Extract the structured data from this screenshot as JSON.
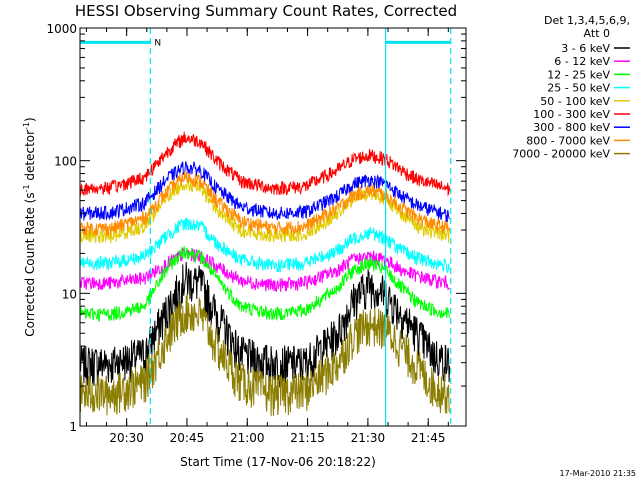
{
  "chart_data": {
    "type": "line",
    "title": "HESSI Observing Summary Count Rates, Corrected",
    "xlabel": "Start Time (17-Nov-06 20:18:22)",
    "ylabel": "Corrected Count Rate (s",
    "ylabel_sup1": "-1",
    "ylabel_mid": " detector",
    "ylabel_sup2": "-1",
    "ylabel_end": ")",
    "x_unit": "minutes from 20:18:22",
    "xlim": [
      0,
      96
    ],
    "x_ticks": [
      {
        "label": "20:30",
        "value": 11.6
      },
      {
        "label": "20:45",
        "value": 26.6
      },
      {
        "label": "21:00",
        "value": 41.6
      },
      {
        "label": "21:15",
        "value": 56.6
      },
      {
        "label": "21:30",
        "value": 71.6
      },
      {
        "label": "21:45",
        "value": 86.6
      }
    ],
    "y_scale": "log",
    "ylim": [
      1,
      1000
    ],
    "y_ticks": [
      {
        "label": "1",
        "value": 1
      },
      {
        "label": "10",
        "value": 10
      },
      {
        "label": "100",
        "value": 100
      },
      {
        "label": "1000",
        "value": 1000
      }
    ],
    "legend_header": [
      "Det 1,3,4,5,6,9,",
      "Att 0"
    ],
    "legend_position": "right",
    "annotations": {
      "marker_label": "N",
      "dashed_lines_x": [
        17.5,
        92.2
      ],
      "solid_lines_x": [
        76.0
      ],
      "bar_segments": [
        [
          0,
          17.5
        ],
        [
          76.0,
          92.2
        ]
      ],
      "bar_y": 780,
      "color": "#00e5ee"
    },
    "series": [
      {
        "name": "3 - 6 keV",
        "color": "#000000",
        "x": [
          0,
          8,
          16,
          22,
          26,
          30,
          34,
          40,
          48,
          56,
          64,
          68,
          72,
          76,
          80,
          84,
          88,
          92
        ],
        "y": [
          3.0,
          3.0,
          3.5,
          8,
          13,
          12,
          7,
          3.5,
          3.0,
          3.0,
          5,
          9,
          12,
          10,
          7,
          5,
          3.5,
          3.0
        ]
      },
      {
        "name": "6 - 12 keV",
        "color": "#ff00ff",
        "x": [
          0,
          8,
          16,
          22,
          26,
          30,
          34,
          40,
          48,
          56,
          64,
          68,
          72,
          76,
          80,
          84,
          88,
          92
        ],
        "y": [
          12,
          12,
          13,
          17,
          20,
          19,
          16,
          12.5,
          11.5,
          12,
          15,
          18,
          19,
          18,
          15,
          13.5,
          12.5,
          12
        ]
      },
      {
        "name": "12 - 25 keV",
        "color": "#00ff00",
        "x": [
          0,
          8,
          16,
          22,
          26,
          30,
          34,
          40,
          48,
          56,
          64,
          68,
          72,
          76,
          80,
          84,
          88,
          92
        ],
        "y": [
          7,
          7,
          8,
          16,
          21,
          19,
          13,
          8,
          7,
          7.5,
          11,
          15,
          17,
          15,
          11,
          8.5,
          7.5,
          7
        ]
      },
      {
        "name": "25 - 50 keV",
        "color": "#00ffff",
        "x": [
          0,
          8,
          16,
          22,
          26,
          30,
          34,
          40,
          48,
          56,
          64,
          68,
          72,
          76,
          80,
          84,
          88,
          92
        ],
        "y": [
          17,
          17,
          19,
          28,
          34,
          32,
          24,
          18,
          16,
          17,
          21,
          26,
          29,
          26,
          21,
          18.5,
          17,
          16
        ]
      },
      {
        "name": "50 - 100 keV",
        "color": "#e0cc00",
        "x": [
          0,
          8,
          16,
          22,
          26,
          30,
          34,
          40,
          48,
          56,
          64,
          68,
          72,
          76,
          80,
          84,
          88,
          92
        ],
        "y": [
          27,
          27,
          32,
          55,
          68,
          62,
          43,
          30,
          27,
          28,
          40,
          52,
          57,
          52,
          40,
          32,
          29,
          27
        ]
      },
      {
        "name": "100 - 300 keV",
        "color": "#ff0000",
        "x": [
          0,
          8,
          16,
          22,
          26,
          30,
          34,
          40,
          48,
          56,
          64,
          68,
          72,
          76,
          80,
          84,
          88,
          92
        ],
        "y": [
          61,
          63,
          75,
          120,
          150,
          140,
          100,
          70,
          62,
          64,
          85,
          103,
          110,
          103,
          85,
          72,
          66,
          61
        ]
      },
      {
        "name": "300 - 800 keV",
        "color": "#0000ff",
        "x": [
          0,
          8,
          16,
          22,
          26,
          30,
          34,
          40,
          48,
          56,
          64,
          68,
          72,
          76,
          80,
          84,
          88,
          92
        ],
        "y": [
          40,
          41,
          48,
          75,
          90,
          85,
          62,
          45,
          40,
          41,
          54,
          67,
          72,
          67,
          54,
          46,
          42,
          38
        ]
      },
      {
        "name": "800 - 7000 keV",
        "color": "#ff8c00",
        "x": [
          0,
          8,
          16,
          22,
          26,
          30,
          34,
          40,
          48,
          56,
          64,
          68,
          72,
          76,
          80,
          84,
          88,
          92
        ],
        "y": [
          31,
          31,
          37,
          60,
          76,
          70,
          50,
          35,
          31,
          32,
          44,
          55,
          60,
          55,
          44,
          37,
          33,
          31
        ]
      },
      {
        "name": "7000 - 20000 keV",
        "color": "#8b7d00",
        "x": [
          0,
          8,
          16,
          22,
          26,
          30,
          34,
          40,
          48,
          56,
          64,
          68,
          72,
          76,
          80,
          84,
          88,
          92
        ],
        "y": [
          1.8,
          1.8,
          2.2,
          5,
          7.5,
          7,
          4,
          2.2,
          1.8,
          1.9,
          3,
          5,
          6,
          5.5,
          4,
          2.8,
          2.0,
          1.8
        ]
      }
    ]
  },
  "footer": {
    "timestamp": "17-Mar-2010 21:35"
  }
}
